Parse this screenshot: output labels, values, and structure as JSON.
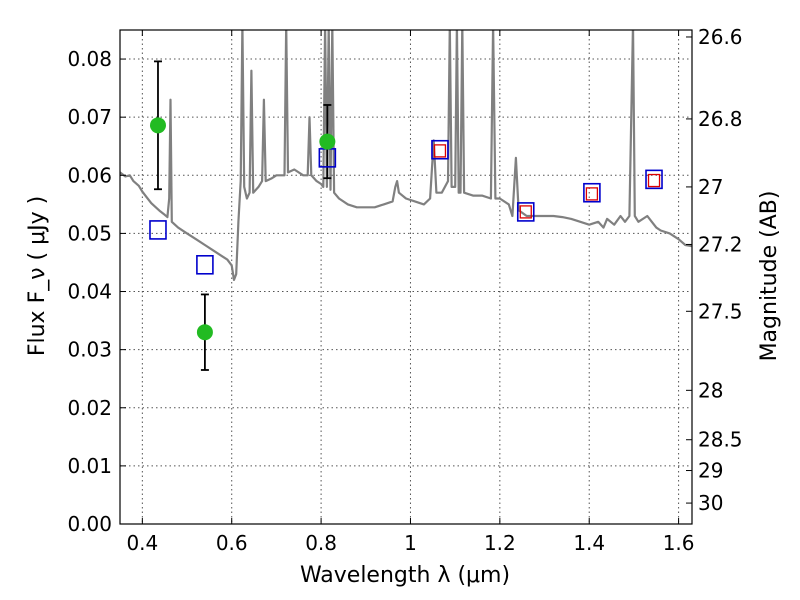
{
  "chart_data": {
    "type": "scatter",
    "title": "",
    "xlabel": "Wavelength  λ (μm)",
    "ylabel": "Flux  F_ν  ( μJy )",
    "ylabel_right": "Magnitude (AB)",
    "xlim": [
      0.35,
      1.63
    ],
    "ylim": [
      0.0,
      0.085
    ],
    "grid": true,
    "x_ticks": [
      0.4,
      0.6,
      0.8,
      1.0,
      1.2,
      1.4,
      1.6
    ],
    "x_tick_labels": [
      "0.4",
      "0.6",
      "0.8",
      "1",
      "1.2",
      "1.4",
      "1.6"
    ],
    "y_ticks": [
      0.0,
      0.01,
      0.02,
      0.03,
      0.04,
      0.05,
      0.06,
      0.07,
      0.08
    ],
    "y_tick_labels": [
      "0.00",
      "0.01",
      "0.02",
      "0.03",
      "0.04",
      "0.05",
      "0.06",
      "0.07",
      "0.08"
    ],
    "right_ticks": [
      {
        "label": "26.6",
        "flux": 0.0838
      },
      {
        "label": "26.8",
        "flux": 0.0697
      },
      {
        "label": "27",
        "flux": 0.058
      },
      {
        "label": "27.2",
        "flux": 0.0481
      },
      {
        "label": "27.5",
        "flux": 0.0366
      },
      {
        "label": "28",
        "flux": 0.023
      },
      {
        "label": "28.5",
        "flux": 0.0145
      },
      {
        "label": "29",
        "flux": 0.0092
      },
      {
        "label": "30",
        "flux": 0.0036
      }
    ],
    "colors": {
      "observed": "#22bb22",
      "model_box": "#0000cc",
      "model_inner": "#dd0000",
      "spectrum": "#808080",
      "errorbar": "#000000",
      "grid": "#555555"
    },
    "series": [
      {
        "marker": "circle",
        "points": [
          {
            "x": 0.435,
            "y": 0.0686,
            "err": 0.011
          },
          {
            "x": 0.54,
            "y": 0.033,
            "err": 0.0065
          },
          {
            "x": 0.814,
            "y": 0.0658,
            "err": 0.0063
          }
        ]
      },
      {
        "marker": "square",
        "points": [
          {
            "x": 0.435,
            "y": 0.0506
          },
          {
            "x": 0.54,
            "y": 0.0446
          },
          {
            "x": 0.814,
            "y": 0.063
          },
          {
            "x": 1.066,
            "y": 0.0644
          },
          {
            "x": 1.258,
            "y": 0.0537
          },
          {
            "x": 1.406,
            "y": 0.057
          },
          {
            "x": 1.545,
            "y": 0.0593
          }
        ]
      },
      {
        "marker": "small-square",
        "points": [
          {
            "x": 1.066,
            "y": 0.0642
          },
          {
            "x": 1.258,
            "y": 0.0537
          },
          {
            "x": 1.406,
            "y": 0.0568
          },
          {
            "x": 1.545,
            "y": 0.0591
          }
        ]
      },
      {
        "marker": "line",
        "points": [
          [
            0.35,
            0.0605
          ],
          [
            0.362,
            0.0598
          ],
          [
            0.372,
            0.06
          ],
          [
            0.38,
            0.059
          ],
          [
            0.392,
            0.0582
          ],
          [
            0.4,
            0.0572
          ],
          [
            0.41,
            0.0562
          ],
          [
            0.42,
            0.0552
          ],
          [
            0.43,
            0.0545
          ],
          [
            0.44,
            0.0538
          ],
          [
            0.45,
            0.0532
          ],
          [
            0.456,
            0.0528
          ],
          [
            0.46,
            0.056
          ],
          [
            0.463,
            0.073
          ],
          [
            0.466,
            0.052
          ],
          [
            0.48,
            0.051
          ],
          [
            0.5,
            0.05
          ],
          [
            0.52,
            0.049
          ],
          [
            0.54,
            0.048
          ],
          [
            0.56,
            0.047
          ],
          [
            0.58,
            0.046
          ],
          [
            0.59,
            0.0455
          ],
          [
            0.6,
            0.0445
          ],
          [
            0.605,
            0.042
          ],
          [
            0.61,
            0.043
          ],
          [
            0.615,
            0.052
          ],
          [
            0.62,
            0.059
          ],
          [
            0.624,
            0.086
          ],
          [
            0.628,
            0.058
          ],
          [
            0.634,
            0.056
          ],
          [
            0.64,
            0.057
          ],
          [
            0.644,
            0.078
          ],
          [
            0.648,
            0.057
          ],
          [
            0.66,
            0.058
          ],
          [
            0.668,
            0.059
          ],
          [
            0.672,
            0.073
          ],
          [
            0.676,
            0.059
          ],
          [
            0.69,
            0.0595
          ],
          [
            0.7,
            0.06
          ],
          [
            0.71,
            0.06
          ],
          [
            0.718,
            0.06
          ],
          [
            0.722,
            0.086
          ],
          [
            0.726,
            0.0605
          ],
          [
            0.74,
            0.061
          ],
          [
            0.76,
            0.06
          ],
          [
            0.77,
            0.06
          ],
          [
            0.774,
            0.07
          ],
          [
            0.778,
            0.06
          ],
          [
            0.79,
            0.059
          ],
          [
            0.8,
            0.0585
          ],
          [
            0.805,
            0.058
          ],
          [
            0.809,
            0.086
          ],
          [
            0.813,
            0.058
          ],
          [
            0.817,
            0.086
          ],
          [
            0.821,
            0.0575
          ],
          [
            0.825,
            0.086
          ],
          [
            0.829,
            0.057
          ],
          [
            0.84,
            0.056
          ],
          [
            0.86,
            0.055
          ],
          [
            0.88,
            0.0545
          ],
          [
            0.9,
            0.0545
          ],
          [
            0.92,
            0.0545
          ],
          [
            0.94,
            0.055
          ],
          [
            0.96,
            0.0555
          ],
          [
            0.966,
            0.058
          ],
          [
            0.97,
            0.059
          ],
          [
            0.974,
            0.057
          ],
          [
            0.99,
            0.056
          ],
          [
            1.01,
            0.0555
          ],
          [
            1.03,
            0.055
          ],
          [
            1.044,
            0.056
          ],
          [
            1.052,
            0.066
          ],
          [
            1.058,
            0.057
          ],
          [
            1.07,
            0.057
          ],
          [
            1.084,
            0.059
          ],
          [
            1.088,
            0.086
          ],
          [
            1.092,
            0.058
          ],
          [
            1.1,
            0.058
          ],
          [
            1.104,
            0.086
          ],
          [
            1.108,
            0.057
          ],
          [
            1.112,
            0.057
          ],
          [
            1.116,
            0.086
          ],
          [
            1.12,
            0.057
          ],
          [
            1.14,
            0.0565
          ],
          [
            1.16,
            0.0565
          ],
          [
            1.18,
            0.056
          ],
          [
            1.185,
            0.086
          ],
          [
            1.19,
            0.056
          ],
          [
            1.2,
            0.056
          ],
          [
            1.22,
            0.055
          ],
          [
            1.228,
            0.053
          ],
          [
            1.236,
            0.063
          ],
          [
            1.242,
            0.054
          ],
          [
            1.26,
            0.053
          ],
          [
            1.28,
            0.053
          ],
          [
            1.3,
            0.053
          ],
          [
            1.32,
            0.053
          ],
          [
            1.34,
            0.0528
          ],
          [
            1.36,
            0.0525
          ],
          [
            1.38,
            0.052
          ],
          [
            1.4,
            0.0515
          ],
          [
            1.42,
            0.052
          ],
          [
            1.432,
            0.051
          ],
          [
            1.44,
            0.0525
          ],
          [
            1.456,
            0.0515
          ],
          [
            1.47,
            0.053
          ],
          [
            1.48,
            0.052
          ],
          [
            1.49,
            0.053
          ],
          [
            1.498,
            0.086
          ],
          [
            1.502,
            0.053
          ],
          [
            1.51,
            0.052
          ],
          [
            1.53,
            0.053
          ],
          [
            1.54,
            0.052
          ],
          [
            1.55,
            0.051
          ],
          [
            1.56,
            0.0505
          ],
          [
            1.58,
            0.05
          ],
          [
            1.6,
            0.049
          ],
          [
            1.615,
            0.048
          ],
          [
            1.63,
            0.0478
          ]
        ]
      }
    ]
  }
}
